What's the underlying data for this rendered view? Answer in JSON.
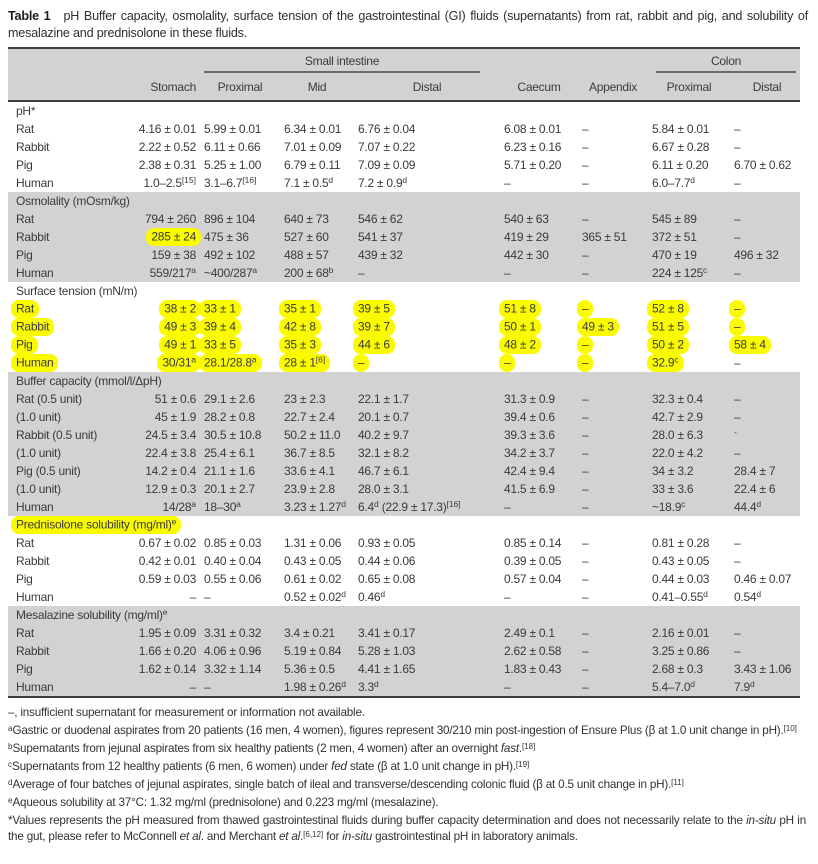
{
  "title": {
    "label": "Table 1",
    "text": "pH Buffer capacity, osmolality, surface tension of the gastrointestinal (GI) fluids (supernatants) from rat, rabbit and pig, and solubility of mesalazine and prednisolone in these fluids."
  },
  "table": {
    "groups": {
      "small_intestine": "Small intestine",
      "colon": "Colon"
    },
    "columns": [
      "Stomach",
      "Proximal",
      "Mid",
      "Distal",
      "Caecum",
      "Appendix",
      "Proximal",
      "Distal"
    ],
    "sections": [
      {
        "label": "pH*",
        "shaded": false,
        "rows": [
          {
            "label": "Rat",
            "cells": [
              "4.16 ± 0.01",
              "5.99 ± 0.01",
              "6.34 ± 0.01",
              "6.76 ± 0.04",
              "6.08 ± 0.01",
              "–",
              "5.84 ± 0.01",
              "–"
            ]
          },
          {
            "label": "Rabbit",
            "cells": [
              "2.22 ± 0.52",
              "6.11 ± 0.66",
              "7.01 ± 0.09",
              "7.07 ± 0.22",
              "6.23 ± 0.16",
              "–",
              "6.67 ± 0.28",
              "–"
            ]
          },
          {
            "label": "Pig",
            "cells": [
              "2.38 ± 0.31",
              "5.25 ± 1.00",
              "6.79 ± 0.11",
              "7.09 ± 0.09",
              "5.71 ± 0.20",
              "–",
              "6.11 ± 0.20",
              "6.70 ± 0.62"
            ]
          },
          {
            "label": "Human",
            "cells": [
              "1.0–2.5^{[15]}",
              "3.1–6.7^{[16]}",
              "7.1 ± 0.5^{d}",
              "7.2 ± 0.9^{d}",
              "–",
              "–",
              "6.0–7.7^{d}",
              "–"
            ]
          }
        ]
      },
      {
        "label": "Osmolality (mOsm/kg)",
        "shaded": true,
        "rows": [
          {
            "label": "Rat",
            "cells": [
              "794 ± 260",
              "896 ± 104",
              "640 ± 73",
              "546 ± 62",
              "540 ± 63",
              "–",
              "545 ± 89",
              "–"
            ]
          },
          {
            "label": "Rabbit",
            "cells": [
              "285 ± 24",
              "475 ± 36",
              "527 ± 60",
              "541 ± 37",
              "419 ± 29",
              "365 ± 51",
              "372 ± 51",
              "–"
            ],
            "hl": [
              true,
              false,
              false,
              false,
              false,
              false,
              false,
              false
            ]
          },
          {
            "label": "Pig",
            "cells": [
              "159 ± 38",
              "492 ± 102",
              "488 ± 57",
              "439 ± 32",
              "442 ± 30",
              "–",
              "470 ± 19",
              "496 ± 32"
            ]
          },
          {
            "label": "Human",
            "cells": [
              "559/217^{a}",
              "~400/287^{a}",
              "200 ± 68^{b}",
              "–",
              "–",
              "–",
              "224 ± 125^{c}",
              "–"
            ]
          }
        ]
      },
      {
        "label": "Surface tension (mN/m)",
        "shaded": false,
        "rows": [
          {
            "label": "Rat",
            "label_hl": true,
            "cells": [
              "38 ± 2",
              "33 ± 1",
              "35 ± 1",
              "39 ± 5",
              "51 ± 8",
              "–",
              "52 ± 8",
              "–"
            ],
            "hl": [
              true,
              true,
              true,
              true,
              true,
              true,
              true,
              true
            ]
          },
          {
            "label": "Rabbit",
            "label_hl": true,
            "cells": [
              "49 ± 3",
              "39 ± 4",
              "42 ± 8",
              "39 ± 7",
              "50 ± 1",
              "49 ± 3",
              "51 ± 5",
              "–"
            ],
            "hl": [
              true,
              true,
              true,
              true,
              true,
              true,
              true,
              true
            ]
          },
          {
            "label": "Pig",
            "label_hl": true,
            "cells": [
              "49 ± 1",
              "33 ± 5",
              "35 ± 3",
              "44 ± 6",
              "48 ± 2",
              "–",
              "50 ± 2",
              "58 ± 4"
            ],
            "hl": [
              true,
              true,
              true,
              true,
              true,
              true,
              true,
              true
            ]
          },
          {
            "label": "Human",
            "label_hl": true,
            "cells": [
              "30/31^{a}",
              "28.1/28.8^{a}",
              "28 ± 1^{[6]}",
              "–",
              "–",
              "–",
              "32.9^{c}",
              "–"
            ],
            "hl": [
              true,
              true,
              true,
              true,
              true,
              true,
              true,
              false
            ]
          }
        ]
      },
      {
        "label": "Buffer capacity (mmol/l/ΔpH)",
        "shaded": true,
        "rows": [
          {
            "label": "Rat (0.5 unit)",
            "cells": [
              "51 ± 0.6",
              "29.1 ± 2.6",
              "23 ± 2.3",
              "22.1 ± 1.7",
              "31.3 ± 0.9",
              "–",
              "32.3 ± 0.4",
              "–"
            ]
          },
          {
            "label": "(1.0 unit)",
            "cells": [
              "45 ± 1.9",
              "28.2 ± 0.8",
              "22.7 ± 2.4",
              "20.1 ± 0.7",
              "39.4 ± 0.6",
              "–",
              "42.7 ± 2.9",
              "–"
            ]
          },
          {
            "label": "Rabbit (0.5 unit)",
            "cells": [
              "24.5 ± 3.4",
              "30.5 ± 10.8",
              "50.2 ± 11.0",
              "40.2 ± 9.7",
              "39.3 ± 3.6",
              "–",
              "28.0 ± 6.3",
              "^{-}"
            ]
          },
          {
            "label": "(1.0 unit)",
            "cells": [
              "22.4 ± 3.8",
              "25.4 ± 6.1",
              "36.7 ± 8.5",
              "32.1 ± 8.2",
              "34.2 ± 3.7",
              "–",
              "22.0 ± 4.2",
              "–"
            ]
          },
          {
            "label": "Pig (0.5 unit)",
            "cells": [
              "14.2 ± 0.4",
              "21.1 ± 1.6",
              "33.6 ± 4.1",
              "46.7 ± 6.1",
              "42.4 ± 9.4",
              "–",
              "34 ± 3.2",
              "28.4 ± 7"
            ]
          },
          {
            "label": "(1.0 unit)",
            "cells": [
              "12.9 ± 0.3",
              "20.1 ± 2.7",
              "23.9 ± 2.8",
              "28.0 ± 3.1",
              "41.5 ± 6.9",
              "–",
              "33 ± 3.6",
              "22.4 ± 6"
            ]
          },
          {
            "label": "Human",
            "cells": [
              "14/28^{a}",
              "18–30^{a}",
              "3.23 ± 1.27^{d}",
              "6.4^{d} (22.9 ± 17.3)^{[16]}",
              "–",
              "–",
              "~18.9^{c}",
              "44.4^{d}"
            ]
          }
        ]
      },
      {
        "label": "Prednisolone solubility (mg/ml)^{e}",
        "shaded": false,
        "label_highlighted": true,
        "rows": [
          {
            "label": "Rat",
            "cells": [
              "0.67 ± 0.02",
              "0.85 ± 0.03",
              "1.31 ± 0.06",
              "0.93 ± 0.05",
              "0.85 ± 0.14",
              "–",
              "0.81 ± 0.28",
              "–"
            ]
          },
          {
            "label": "Rabbit",
            "cells": [
              "0.42 ± 0.01",
              "0.40 ± 0.04",
              "0.43 ± 0.05",
              "0.44 ± 0.06",
              "0.39 ± 0.05",
              "–",
              "0.43 ± 0.05",
              "–"
            ]
          },
          {
            "label": "Pig",
            "cells": [
              "0.59 ± 0.03",
              "0.55 ± 0.06",
              "0.61 ± 0.02",
              "0.65 ± 0.08",
              "0.57 ± 0.04",
              "–",
              "0.44 ± 0.03",
              "0.46 ± 0.07"
            ]
          },
          {
            "label": "Human",
            "cells": [
              "–",
              "–",
              "0.52 ± 0.02^{d}",
              "0.46^{d}",
              "–",
              "–",
              "0.41–0.55^{d}",
              "0.54^{d}"
            ]
          }
        ]
      },
      {
        "label": "Mesalazine solubility (mg/ml)^{e}",
        "shaded": true,
        "rows": [
          {
            "label": "Rat",
            "cells": [
              "1.95 ± 0.09",
              "3.31 ± 0.32",
              "3.4 ± 0.21",
              "3.41 ± 0.17",
              "2.49 ± 0.1",
              "–",
              "2.16 ± 0.01",
              "–"
            ]
          },
          {
            "label": "Rabbit",
            "cells": [
              "1.66 ± 0.20",
              "4.06 ± 0.96",
              "5.19 ± 0.84",
              "5.28 ± 1.03",
              "2.62 ± 0.58",
              "–",
              "3.25 ± 0.86",
              "–"
            ]
          },
          {
            "label": "Pig",
            "cells": [
              "1.62 ± 0.14",
              "3.32 ± 1.14",
              "5.36 ± 0.5",
              "4.41 ± 1.65",
              "1.83 ± 0.43",
              "–",
              "2.68 ± 0.3",
              "3.43 ± 1.06"
            ]
          },
          {
            "label": "Human",
            "cells": [
              "–",
              "–",
              "1.98 ± 0.26^{d}",
              "3.3^{d}",
              "–",
              "–",
              "5.4–7.0^{d}",
              "7.9^{d}"
            ]
          }
        ]
      }
    ]
  },
  "footnotes": [
    "–, insufficient supernatant for measurement or information not available.",
    "^{a}Gastric or duodenal aspirates from 20 patients (16 men, 4 women), figures represent 30/210 min post-ingestion of Ensure Plus (β at 1.0 unit change in pH).^{[10]}",
    "^{b}Supernatants from jejunal aspirates from six healthy patients (2 men, 4 women) after an overnight ~{fast}.^{[18]}",
    "^{c}Supernatants from 12 healthy patients (6 men, 6 women) under ~{fed} state (β at 1.0 unit change in pH).^{[19]}",
    "^{d}Average of four batches of jejunal aspirates, single batch of ileal and transverse/descending colonic fluid (β at 0.5 unit change in pH).^{[11]}",
    "^{e}Aqueous solubility at 37°C: 1.32 mg/ml (prednisolone) and 0.223 mg/ml (mesalazine).",
    "*Values represents the pH measured from thawed gastrointestinal fluids during buffer capacity determination and does not necessarily relate to the ~{in-situ} pH in the gut, please refer to McConnell ~{et al}. and Merchant ~{et al}.^{[6,12]} for ~{in-situ} gastrointestinal pH in laboratory animals."
  ],
  "colors": {
    "band": "#d2d2d2",
    "highlight": "#fbfb00",
    "rule": "#3d3d3d",
    "text": "#3a3a3a"
  }
}
